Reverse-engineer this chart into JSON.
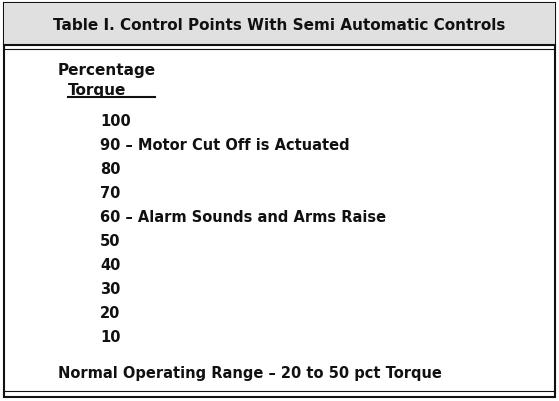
{
  "title": "Table I. Control Points With Semi Automatic Controls",
  "header_line1": "Percentage",
  "header_line2": "Torque",
  "torque_values": [
    100,
    90,
    80,
    70,
    60,
    50,
    40,
    30,
    20,
    10
  ],
  "annotations": {
    "90": "90 – Motor Cut Off is Actuated",
    "60": "60 – Alarm Sounds and Arms Raise"
  },
  "footer": "Normal Operating Range – 20 to 50 pct Torque",
  "bg_color": "#ffffff",
  "title_bg_color": "#e8e8e8",
  "text_color": "#111111",
  "border_color": "#111111",
  "title_fontsize": 11.0,
  "body_fontsize": 10.5,
  "header_fontsize": 11.0,
  "footer_fontsize": 10.5
}
